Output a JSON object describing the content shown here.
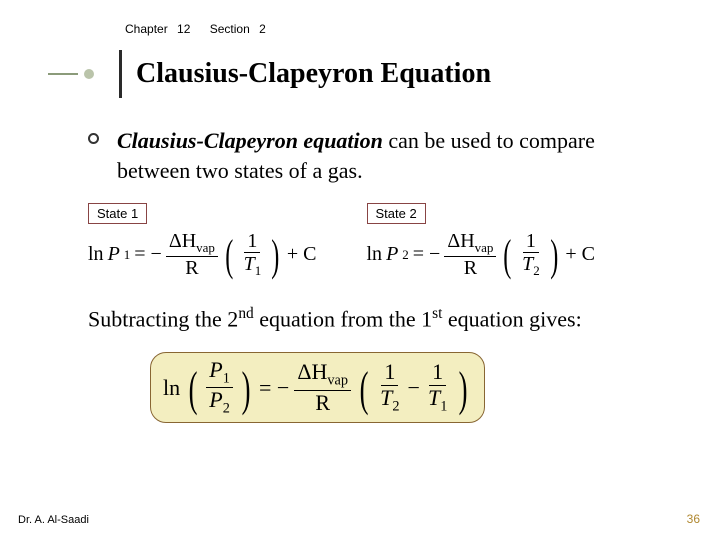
{
  "header": {
    "chapter_label": "Chapter",
    "chapter_num": "12",
    "section_label": "Section",
    "section_num": "2",
    "fontsize": 12
  },
  "title": {
    "text": "Clausius-Clapeyron Equation",
    "fontsize": 28,
    "color": "#000000"
  },
  "bullet": {
    "lead_bold": "Clausius-Clapeyron equation",
    "rest": " can be used to compare between two states of a gas.",
    "fontsize": 22
  },
  "states": {
    "label1": "State 1",
    "label2": "State 2",
    "label_fontsize": 13,
    "label_border_color": "#884444",
    "eq_fontsize": 20,
    "eq1": {
      "lhs_p": "P",
      "lhs_sub": "1",
      "rhs_t": "T",
      "rhs_tsub": "1"
    },
    "eq2": {
      "lhs_p": "P",
      "lhs_sub": "2",
      "rhs_t": "T",
      "rhs_tsub": "2"
    },
    "delta_h": "ΔH",
    "vap": "vap",
    "R": "R",
    "plusC": "+ C",
    "ln": "ln"
  },
  "subtract": {
    "text_a": "Subtracting the 2",
    "sup_a": "nd",
    "text_b": " equation from the 1",
    "sup_b": "st",
    "text_c": " equation gives:",
    "fontsize": 22
  },
  "boxed": {
    "bg_color": "#f3eec0",
    "border_color": "#886633",
    "fontsize": 22,
    "ln": "ln",
    "P": "P",
    "sub1": "1",
    "sub2": "2",
    "delta_h": "ΔH",
    "vap": "vap",
    "R": "R",
    "T": "T"
  },
  "footer": {
    "author": "Dr. A. Al-Saadi",
    "page": "36",
    "author_fontsize": 11,
    "page_fontsize": 12,
    "page_color": "#b08830"
  }
}
